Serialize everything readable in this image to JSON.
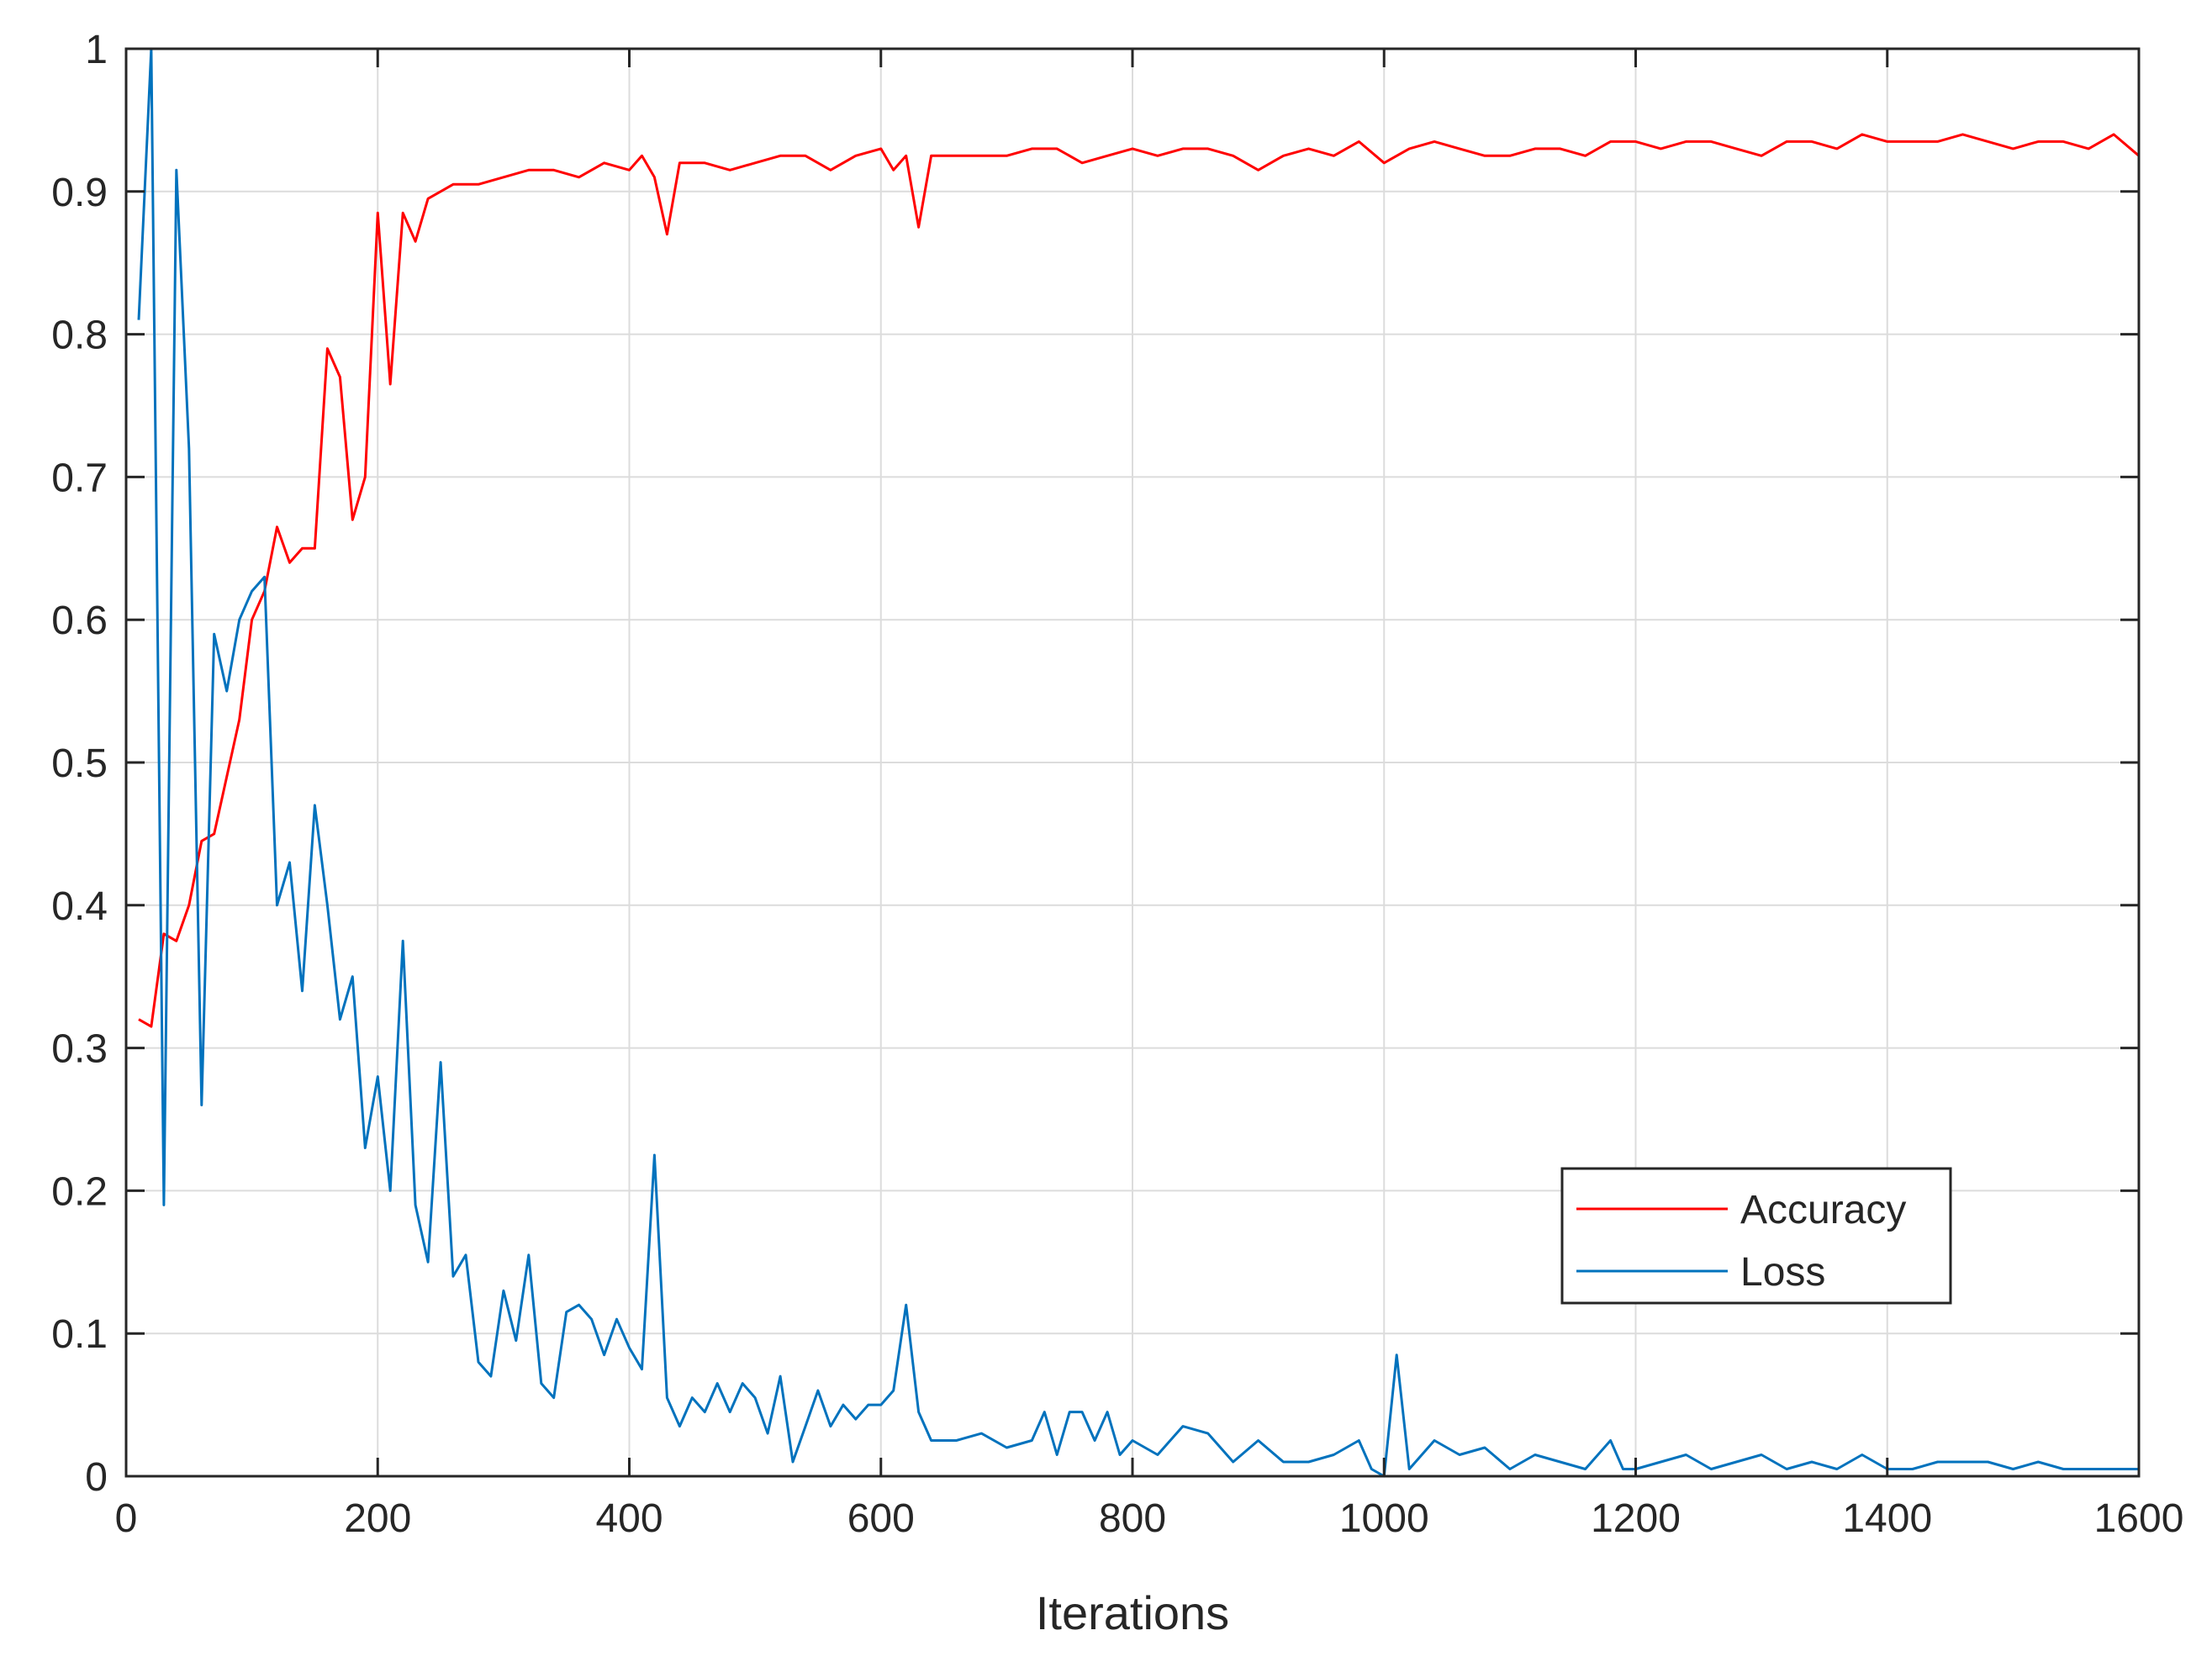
{
  "chart_data": {
    "type": "line",
    "title": "",
    "xlabel": "Iterations",
    "ylabel": "",
    "xlim": [
      0,
      1600
    ],
    "ylim": [
      0,
      1
    ],
    "xticks": [
      0,
      200,
      400,
      600,
      800,
      1000,
      1200,
      1400,
      1600
    ],
    "xtick_labels": [
      "0",
      "200",
      "400",
      "600",
      "800",
      "1000",
      "1200",
      "1400",
      "1600"
    ],
    "yticks": [
      0,
      0.1,
      0.2,
      0.3,
      0.4,
      0.5,
      0.6,
      0.7,
      0.8,
      0.9,
      1
    ],
    "ytick_labels": [
      "0",
      "0.1",
      "0.2",
      "0.3",
      "0.4",
      "0.5",
      "0.6",
      "0.7",
      "0.8",
      "0.9",
      "1"
    ],
    "grid": true,
    "legend_position": "bottom-right",
    "series": [
      {
        "name": "Accuracy",
        "color": "#ff0000",
        "x": [
          10,
          20,
          30,
          40,
          50,
          60,
          70,
          80,
          90,
          100,
          110,
          120,
          130,
          140,
          150,
          160,
          170,
          180,
          190,
          200,
          210,
          220,
          230,
          240,
          250,
          260,
          280,
          300,
          320,
          340,
          360,
          380,
          400,
          410,
          420,
          430,
          440,
          460,
          480,
          500,
          520,
          540,
          560,
          580,
          600,
          610,
          620,
          630,
          640,
          660,
          680,
          700,
          720,
          740,
          760,
          780,
          800,
          820,
          840,
          860,
          880,
          900,
          920,
          940,
          960,
          980,
          1000,
          1020,
          1040,
          1060,
          1080,
          1100,
          1120,
          1140,
          1160,
          1180,
          1200,
          1220,
          1240,
          1260,
          1280,
          1300,
          1320,
          1340,
          1360,
          1380,
          1400,
          1420,
          1440,
          1460,
          1480,
          1500,
          1520,
          1540,
          1560,
          1580,
          1600
        ],
        "values": [
          0.32,
          0.315,
          0.38,
          0.375,
          0.4,
          0.445,
          0.45,
          0.49,
          0.53,
          0.6,
          0.62,
          0.665,
          0.64,
          0.65,
          0.65,
          0.79,
          0.77,
          0.67,
          0.7,
          0.885,
          0.765,
          0.885,
          0.865,
          0.895,
          0.9,
          0.905,
          0.905,
          0.91,
          0.915,
          0.915,
          0.91,
          0.92,
          0.915,
          0.925,
          0.91,
          0.87,
          0.92,
          0.92,
          0.915,
          0.92,
          0.925,
          0.925,
          0.915,
          0.925,
          0.93,
          0.915,
          0.925,
          0.875,
          0.925,
          0.925,
          0.925,
          0.925,
          0.93,
          0.93,
          0.92,
          0.925,
          0.93,
          0.925,
          0.93,
          0.93,
          0.925,
          0.915,
          0.925,
          0.93,
          0.925,
          0.935,
          0.92,
          0.93,
          0.935,
          0.93,
          0.925,
          0.925,
          0.93,
          0.93,
          0.925,
          0.935,
          0.935,
          0.93,
          0.935,
          0.935,
          0.93,
          0.925,
          0.935,
          0.935,
          0.93,
          0.94,
          0.935,
          0.935,
          0.935,
          0.94,
          0.935,
          0.93,
          0.935,
          0.935,
          0.93,
          0.94,
          0.925
        ]
      },
      {
        "name": "Loss",
        "color": "#0072bd",
        "x": [
          10,
          20,
          30,
          40,
          50,
          60,
          70,
          80,
          90,
          100,
          110,
          120,
          130,
          140,
          150,
          160,
          170,
          180,
          190,
          200,
          210,
          220,
          230,
          240,
          250,
          260,
          270,
          280,
          290,
          300,
          310,
          320,
          330,
          340,
          350,
          360,
          370,
          380,
          390,
          400,
          410,
          420,
          430,
          440,
          450,
          460,
          470,
          480,
          490,
          500,
          510,
          520,
          530,
          540,
          550,
          560,
          570,
          580,
          590,
          600,
          610,
          620,
          630,
          640,
          660,
          680,
          700,
          720,
          730,
          740,
          750,
          760,
          770,
          780,
          790,
          800,
          820,
          840,
          860,
          880,
          900,
          920,
          940,
          960,
          980,
          990,
          1000,
          1010,
          1020,
          1040,
          1060,
          1080,
          1100,
          1120,
          1140,
          1160,
          1180,
          1190,
          1200,
          1220,
          1240,
          1260,
          1280,
          1300,
          1320,
          1340,
          1360,
          1380,
          1400,
          1420,
          1440,
          1460,
          1480,
          1500,
          1520,
          1540,
          1560,
          1580,
          1600
        ],
        "values": [
          0.81,
          1.0,
          0.19,
          0.915,
          0.72,
          0.26,
          0.59,
          0.55,
          0.6,
          0.62,
          0.63,
          0.4,
          0.43,
          0.34,
          0.47,
          0.4,
          0.32,
          0.35,
          0.23,
          0.28,
          0.2,
          0.375,
          0.19,
          0.15,
          0.29,
          0.14,
          0.155,
          0.08,
          0.07,
          0.13,
          0.095,
          0.155,
          0.065,
          0.055,
          0.115,
          0.12,
          0.11,
          0.085,
          0.11,
          0.09,
          0.075,
          0.225,
          0.055,
          0.035,
          0.055,
          0.045,
          0.065,
          0.045,
          0.065,
          0.055,
          0.03,
          0.07,
          0.01,
          0.035,
          0.06,
          0.035,
          0.05,
          0.04,
          0.05,
          0.05,
          0.06,
          0.12,
          0.045,
          0.025,
          0.025,
          0.03,
          0.02,
          0.025,
          0.045,
          0.015,
          0.045,
          0.045,
          0.025,
          0.045,
          0.015,
          0.025,
          0.015,
          0.035,
          0.03,
          0.01,
          0.025,
          0.01,
          0.01,
          0.015,
          0.025,
          0.005,
          0.0,
          0.085,
          0.005,
          0.025,
          0.015,
          0.02,
          0.005,
          0.015,
          0.01,
          0.005,
          0.025,
          0.005,
          0.005,
          0.01,
          0.015,
          0.005,
          0.01,
          0.015,
          0.005,
          0.01,
          0.005,
          0.015,
          0.005,
          0.005,
          0.01,
          0.01,
          0.01,
          0.005,
          0.01,
          0.005,
          0.005,
          0.005,
          0.005
        ]
      }
    ]
  }
}
